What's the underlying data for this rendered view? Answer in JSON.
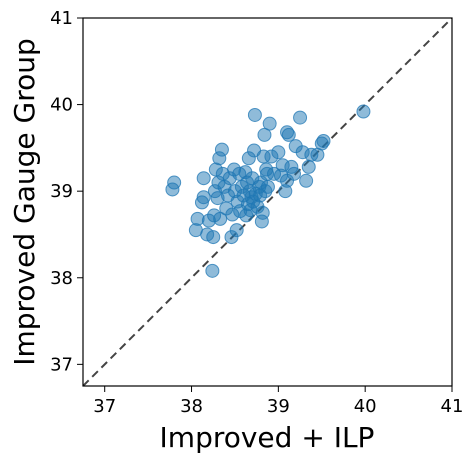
{
  "chart_data": {
    "type": "scatter",
    "title": "",
    "xlabel": "Improved + ILP",
    "ylabel": "Improved Gauge Group",
    "xlim": [
      36.75,
      41
    ],
    "ylim": [
      36.75,
      41
    ],
    "xticks": [
      37,
      38,
      39,
      40,
      41
    ],
    "yticks": [
      37,
      38,
      39,
      40,
      41
    ],
    "grid": false,
    "reference_line": {
      "style": "dashed",
      "from": [
        36.75,
        36.75
      ],
      "to": [
        41,
        41
      ],
      "color": "#444444"
    },
    "point_color": "#1f77b4",
    "point_alpha": 0.5,
    "series": [
      {
        "points": [
          [
            37.78,
            39.02
          ],
          [
            37.8,
            39.1
          ],
          [
            38.05,
            38.55
          ],
          [
            38.07,
            38.68
          ],
          [
            38.12,
            38.87
          ],
          [
            38.14,
            38.93
          ],
          [
            38.14,
            39.15
          ],
          [
            38.18,
            38.5
          ],
          [
            38.2,
            38.66
          ],
          [
            38.24,
            38.08
          ],
          [
            38.25,
            38.47
          ],
          [
            38.26,
            38.72
          ],
          [
            38.27,
            39.0
          ],
          [
            38.28,
            39.25
          ],
          [
            38.3,
            38.92
          ],
          [
            38.31,
            39.1
          ],
          [
            38.32,
            39.38
          ],
          [
            38.33,
            38.68
          ],
          [
            38.35,
            39.48
          ],
          [
            38.36,
            39.2
          ],
          [
            38.38,
            39.05
          ],
          [
            38.4,
            38.8
          ],
          [
            38.42,
            38.95
          ],
          [
            38.44,
            39.15
          ],
          [
            38.46,
            38.47
          ],
          [
            38.47,
            38.73
          ],
          [
            38.49,
            39.25
          ],
          [
            38.5,
            39.0
          ],
          [
            38.52,
            38.55
          ],
          [
            38.53,
            38.88
          ],
          [
            38.55,
            39.2
          ],
          [
            38.56,
            38.77
          ],
          [
            38.58,
            39.05
          ],
          [
            38.6,
            38.95
          ],
          [
            38.62,
            39.22
          ],
          [
            38.63,
            38.72
          ],
          [
            38.64,
            39.1
          ],
          [
            38.65,
            38.85
          ],
          [
            38.66,
            39.38
          ],
          [
            38.67,
            39.0
          ],
          [
            38.68,
            38.78
          ],
          [
            38.69,
            38.93
          ],
          [
            38.7,
            39.15
          ],
          [
            38.71,
            38.88
          ],
          [
            38.72,
            39.47
          ],
          [
            38.73,
            39.88
          ],
          [
            38.74,
            38.97
          ],
          [
            38.76,
            38.82
          ],
          [
            38.78,
            39.05
          ],
          [
            38.79,
            38.95
          ],
          [
            38.8,
            39.1
          ],
          [
            38.81,
            38.65
          ],
          [
            38.82,
            38.75
          ],
          [
            38.83,
            39.4
          ],
          [
            38.84,
            39.65
          ],
          [
            38.85,
            39.0
          ],
          [
            38.86,
            39.25
          ],
          [
            38.87,
            39.2
          ],
          [
            38.88,
            39.05
          ],
          [
            38.9,
            39.78
          ],
          [
            38.92,
            39.4
          ],
          [
            38.95,
            39.2
          ],
          [
            39.0,
            39.45
          ],
          [
            39.03,
            39.18
          ],
          [
            39.05,
            39.3
          ],
          [
            39.08,
            39.0
          ],
          [
            39.1,
            39.12
          ],
          [
            39.1,
            39.68
          ],
          [
            39.12,
            39.65
          ],
          [
            39.15,
            39.28
          ],
          [
            39.18,
            39.2
          ],
          [
            39.2,
            39.52
          ],
          [
            39.25,
            39.85
          ],
          [
            39.28,
            39.45
          ],
          [
            39.32,
            39.12
          ],
          [
            39.35,
            39.28
          ],
          [
            39.38,
            39.42
          ],
          [
            39.45,
            39.42
          ],
          [
            39.5,
            39.55
          ],
          [
            39.52,
            39.58
          ],
          [
            39.98,
            39.92
          ]
        ]
      }
    ]
  }
}
